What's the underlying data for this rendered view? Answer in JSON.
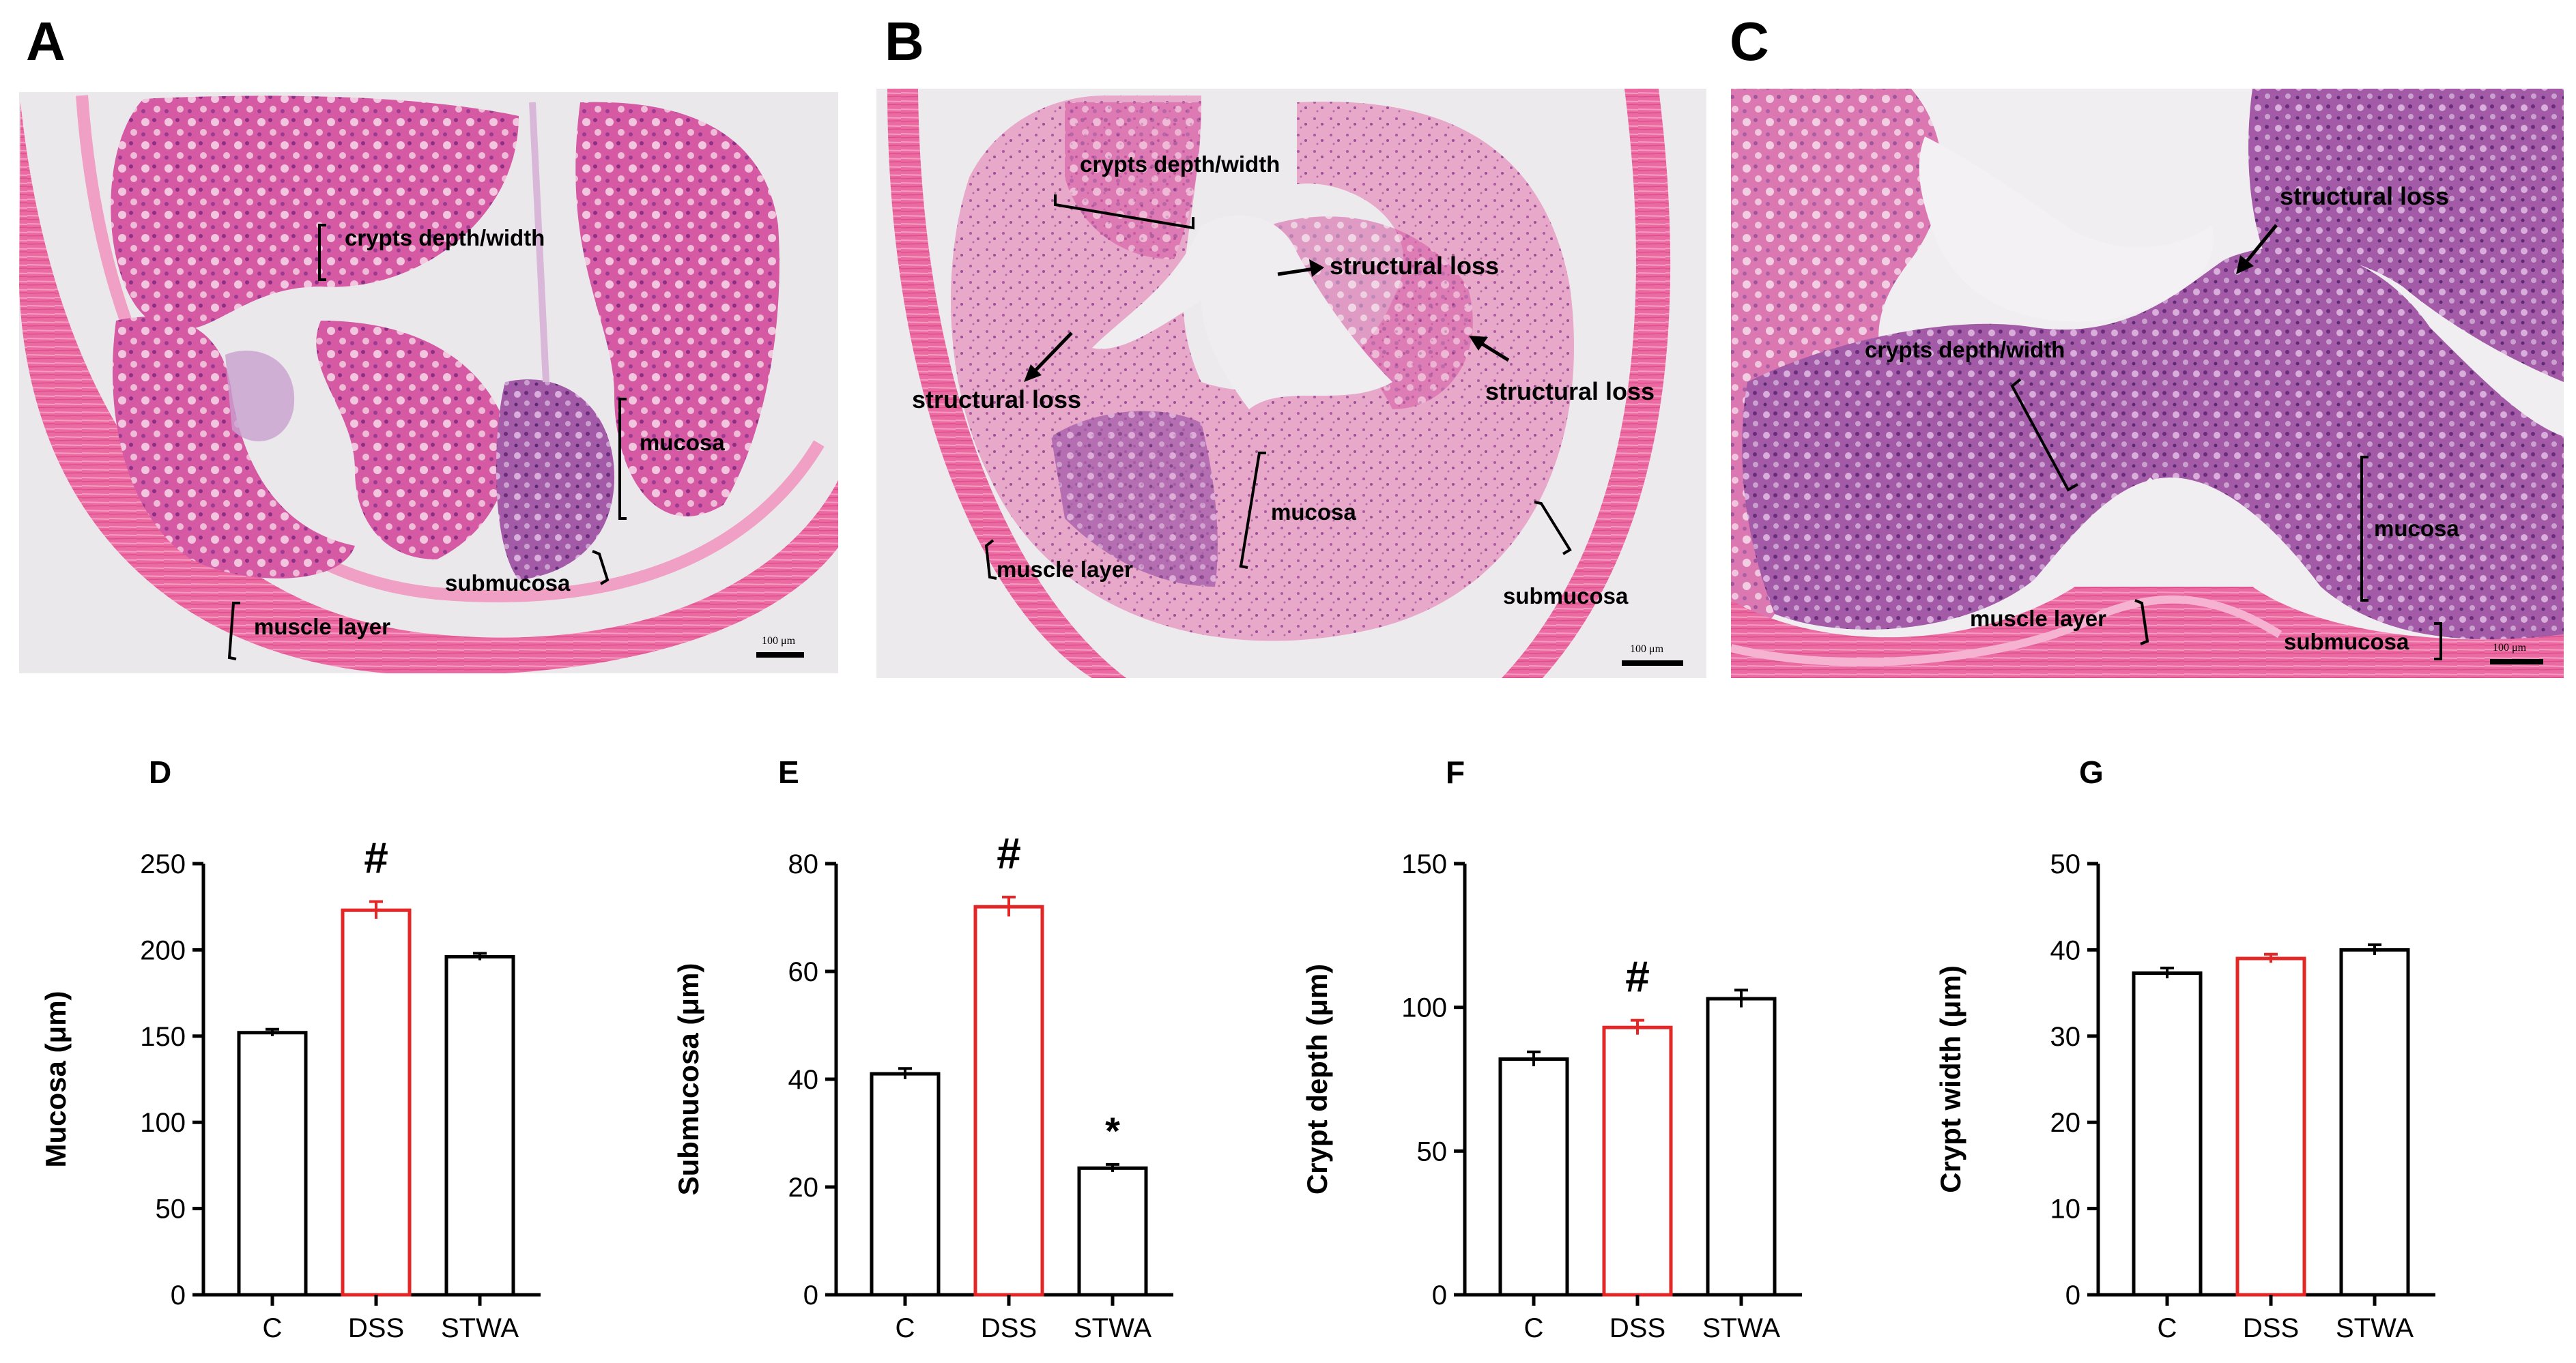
{
  "micrographs": [
    {
      "letter": "A",
      "scale_bar": "100 μm",
      "annotations": [
        "crypts depth/width",
        "mucosa",
        "submucosa",
        "muscle layer"
      ]
    },
    {
      "letter": "B",
      "scale_bar": "100 μm",
      "annotations": [
        "crypts depth/width",
        "structural loss",
        "structural loss",
        "structural loss",
        "mucosa",
        "muscle layer",
        "submucosa"
      ]
    },
    {
      "letter": "C",
      "scale_bar": "100 μm",
      "annotations": [
        "structural loss",
        "crypts depth/width",
        "mucosa",
        "muscle layer",
        "submucosa"
      ]
    }
  ],
  "colors": {
    "tissue_pink": "#e67fb3",
    "tissue_purple": "#9a4a9e",
    "background_light": "#ece9ed",
    "muscle_pink": "#ee5f9a",
    "dss_bar": "#e32626",
    "default_bar": "#000000"
  },
  "chart_data": [
    {
      "type": "bar",
      "letter": "D",
      "categories": [
        "C",
        "DSS",
        "STWA"
      ],
      "values": [
        152,
        223,
        196
      ],
      "errors": [
        2,
        5,
        2
      ],
      "bar_colors": [
        "#000000",
        "#e32626",
        "#000000"
      ],
      "annotations": [
        "",
        "#",
        ""
      ],
      "ylabel": "Mucosa (μm)",
      "ylim": [
        0,
        250
      ],
      "yticks": [
        0,
        50,
        100,
        150,
        200,
        250
      ],
      "grid": false
    },
    {
      "type": "bar",
      "letter": "E",
      "categories": [
        "C",
        "DSS",
        "STWA"
      ],
      "values": [
        41,
        72,
        23.5
      ],
      "errors": [
        1,
        1.8,
        0.7
      ],
      "bar_colors": [
        "#000000",
        "#e32626",
        "#000000"
      ],
      "annotations": [
        "",
        "#",
        "*"
      ],
      "ylabel": "Submucosa (μm)",
      "ylim": [
        0,
        80
      ],
      "yticks": [
        0,
        20,
        40,
        60,
        80
      ],
      "grid": false
    },
    {
      "type": "bar",
      "letter": "F",
      "categories": [
        "C",
        "DSS",
        "STWA"
      ],
      "values": [
        82,
        93,
        103
      ],
      "errors": [
        2.5,
        2.5,
        3
      ],
      "bar_colors": [
        "#000000",
        "#e32626",
        "#000000"
      ],
      "annotations": [
        "",
        "#",
        ""
      ],
      "ylabel": "Crypt depth (μm)",
      "ylim": [
        0,
        150
      ],
      "yticks": [
        0,
        50,
        100,
        150
      ],
      "grid": false
    },
    {
      "type": "bar",
      "letter": "G",
      "categories": [
        "C",
        "DSS",
        "STWA"
      ],
      "values": [
        37.3,
        39,
        40
      ],
      "errors": [
        0.6,
        0.5,
        0.6
      ],
      "bar_colors": [
        "#000000",
        "#e32626",
        "#000000"
      ],
      "annotations": [
        "",
        "",
        ""
      ],
      "ylabel": "Crypt width (μm)",
      "ylim": [
        0,
        50
      ],
      "yticks": [
        0,
        10,
        20,
        30,
        40,
        50
      ],
      "grid": false
    }
  ]
}
